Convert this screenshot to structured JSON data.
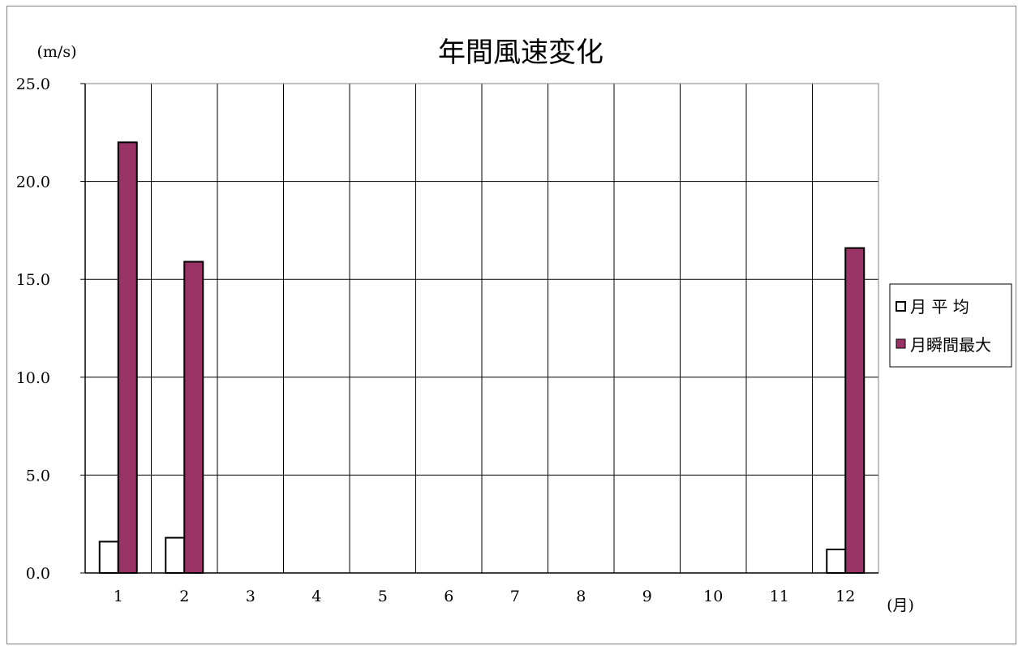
{
  "chart_data": {
    "type": "bar",
    "title": "年間風速変化",
    "y_unit": "(m/s)",
    "x_unit": "(月)",
    "categories": [
      "1",
      "2",
      "3",
      "4",
      "5",
      "6",
      "7",
      "8",
      "9",
      "10",
      "11",
      "12"
    ],
    "ylim": [
      0,
      25
    ],
    "yticks": [
      "0.0",
      "5.0",
      "10.0",
      "15.0",
      "20.0",
      "25.0"
    ],
    "grid": true,
    "legend_position": "right",
    "series": [
      {
        "name": "月 平 均",
        "color": "#ffffff",
        "values": [
          1.6,
          1.8,
          null,
          null,
          null,
          null,
          null,
          null,
          null,
          null,
          null,
          1.2
        ]
      },
      {
        "name": "月瞬間最大",
        "color": "#993366",
        "values": [
          22.0,
          15.9,
          null,
          null,
          null,
          null,
          null,
          null,
          null,
          null,
          null,
          16.6
        ]
      }
    ]
  }
}
